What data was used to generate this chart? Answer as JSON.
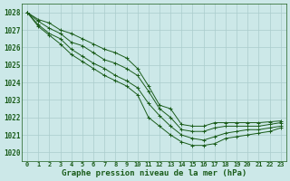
{
  "title": "Graphe pression niveau de la mer (hPa)",
  "xlim": [
    -0.5,
    23.5
  ],
  "ylim": [
    1019.5,
    1028.5
  ],
  "yticks": [
    1020,
    1021,
    1022,
    1023,
    1024,
    1025,
    1026,
    1027,
    1028
  ],
  "xticks": [
    0,
    1,
    2,
    3,
    4,
    5,
    6,
    7,
    8,
    9,
    10,
    11,
    12,
    13,
    14,
    15,
    16,
    17,
    18,
    19,
    20,
    21,
    22,
    23
  ],
  "bg_color": "#cce8e8",
  "grid_color": "#aacccc",
  "line_color": "#1a5c1a",
  "lines": [
    [
      1028.0,
      1027.6,
      1027.4,
      1027.0,
      1026.8,
      1026.5,
      1026.2,
      1025.9,
      1025.7,
      1025.4,
      1024.8,
      1023.8,
      1022.7,
      1022.5,
      1021.6,
      1021.5,
      1021.5,
      1021.7,
      1021.7,
      1021.7,
      1021.7,
      1021.7,
      1021.75,
      1021.8
    ],
    [
      1028.0,
      1027.5,
      1027.1,
      1026.8,
      1026.3,
      1026.1,
      1025.7,
      1025.3,
      1025.1,
      1024.8,
      1024.4,
      1023.5,
      1022.5,
      1022.0,
      1021.3,
      1021.2,
      1021.2,
      1021.4,
      1021.5,
      1021.5,
      1021.5,
      1021.5,
      1021.6,
      1021.7
    ],
    [
      1028.0,
      1027.3,
      1026.8,
      1026.5,
      1025.9,
      1025.5,
      1025.1,
      1024.8,
      1024.4,
      1024.1,
      1023.7,
      1022.8,
      1022.1,
      1021.5,
      1021.0,
      1020.8,
      1020.7,
      1020.9,
      1021.1,
      1021.2,
      1021.3,
      1021.3,
      1021.4,
      1021.5
    ],
    [
      1028.0,
      1027.2,
      1026.7,
      1026.2,
      1025.6,
      1025.2,
      1024.8,
      1024.4,
      1024.1,
      1023.8,
      1023.3,
      1022.0,
      1021.5,
      1021.0,
      1020.6,
      1020.4,
      1020.4,
      1020.5,
      1020.8,
      1020.9,
      1021.0,
      1021.1,
      1021.2,
      1021.4
    ]
  ]
}
